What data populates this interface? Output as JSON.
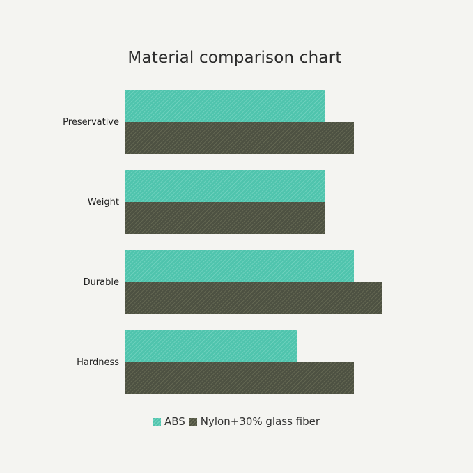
{
  "chart_data": {
    "type": "bar",
    "orientation": "horizontal",
    "title": "Material comparison chart",
    "xlabel": "",
    "ylabel": "",
    "categories": [
      "Preservative",
      "Weight",
      "Durable",
      "Hardness"
    ],
    "series": [
      {
        "name": "ABS",
        "values": [
          7,
          7,
          8,
          6
        ],
        "color": "#52c6b0"
      },
      {
        "name": "Nylon+30% glass fiber",
        "values": [
          8,
          7,
          9,
          8
        ],
        "color": "#565a48"
      }
    ],
    "xlim": [
      0,
      9
    ],
    "grid": false,
    "axis_ticks_visible": false,
    "legend_position": "bottom"
  }
}
